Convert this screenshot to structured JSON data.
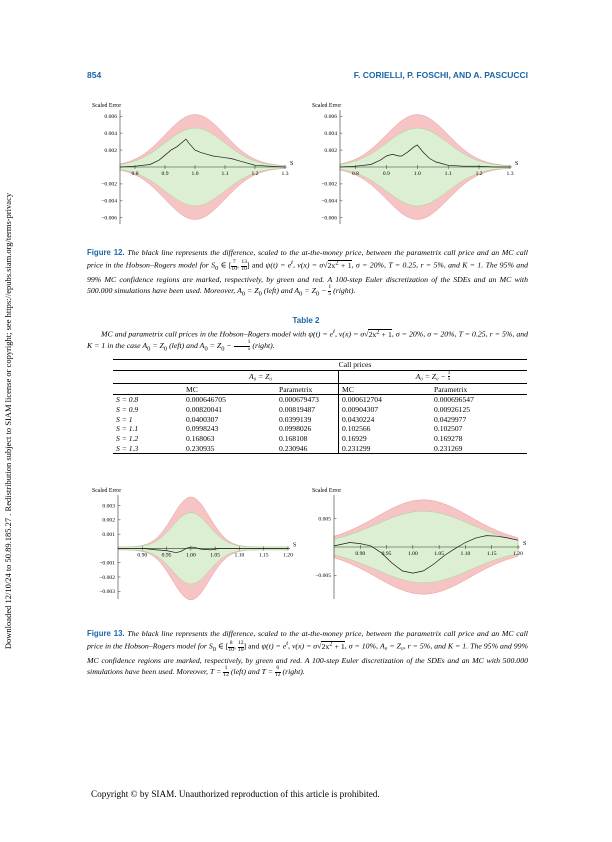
{
  "header": {
    "page_number": "854",
    "authors": "F. CORIELLI, P. FOSCHI, AND A. PASCUCCI"
  },
  "sidebar_note": "Downloaded 12/10/24 to 50.89.185.27 . Redistribution subject to SIAM license or copyright; see https://epubs.siam.org/terms-privacy",
  "figure12": {
    "label": "Figure 12.",
    "caption_a": "The black line represents the difference, scaled to the at-the-money price, between the parametrix call price and an MC call price in the Hobson–Rogers model for S",
    "caption_b": ", and ψ(t) = e",
    "caption_c": ", ν(x) = σ",
    "caption_d": "σ = 20%, T = 0.25, r = 5%, and K = 1. The 95% and 99% MC confidence regions are marked, respectively, by green and red. A 100-step Euler discretization of the SDEs and an MC with 500.000 simulations have been used. Moreover, A",
    "caption_e": "(left) and A",
    "caption_f": "(right).",
    "s_interval": [
      "7",
      "10",
      "13",
      "10"
    ],
    "shift_frac": [
      "1",
      "5"
    ]
  },
  "table2": {
    "label": "Table 2",
    "caption": "MC and parametrix call prices in the Hobson–Rogers model with ψ(t) = e",
    "caption_tail": "σ = 20%, T = 0.25, r = 5%, and K = 1 in the case A",
    "caption_end": "(left) and A",
    "caption_final": "(right).",
    "frac": [
      "1",
      "5"
    ],
    "super_header": "Call prices",
    "group_left": "A₀ = Z₀",
    "group_right": "A₀ = Z₀ −",
    "col_mc": "MC",
    "col_par": "Parametrix",
    "rows": [
      [
        "S = 0.8",
        "0.000646705",
        "0.000679473",
        "0.000612704",
        "0.000696547"
      ],
      [
        "S = 0.9",
        "0.00820041",
        "0.00819487",
        "0.00904307",
        "0.00926125"
      ],
      [
        "S = 1",
        "0.0400307",
        "0.0399139",
        "0.0430224",
        "0.0429977"
      ],
      [
        "S = 1.1",
        "0.0998243",
        "0.0998026",
        "0.102566",
        "0.102507"
      ],
      [
        "S = 1.2",
        "0.168063",
        "0.168108",
        "0.16929",
        "0.169278"
      ],
      [
        "S = 1.3",
        "0.230935",
        "0.230946",
        "0.231299",
        "0.231269"
      ]
    ]
  },
  "figure13": {
    "label": "Figure 13.",
    "caption_a": "The black line represents the difference, scaled to the at-the-money price, between the parametrix call price and an MC call price in the Hobson–Rogers model for S",
    "s_interval": [
      "8",
      "10",
      "12",
      "10"
    ],
    "caption_d": "σ = 10%, A₀ = Z₀, r = 5%, and K = 1. The 95% and 99% MC confidence regions are marked, respectively, by green and red. A 100-step Euler discretization of the SDEs and an MC with 500.000 simulations have been used. Moreover, T =",
    "t_left": [
      "1",
      "12"
    ],
    "t_right": [
      "6",
      "12"
    ],
    "caption_e": "(left) and T =",
    "caption_f": "(right)."
  },
  "footer": "Copyright © by SIAM. Unauthorized reproduction of this article is prohibited.",
  "colors": {
    "heading_blue": "#1a66a8",
    "band_99": "#f6c4c4",
    "band_95": "#dcefd2",
    "curve": "#1a1a1a"
  },
  "chart_data": [
    {
      "type": "area",
      "ylabel": "Scaled Error",
      "xlabel": "S",
      "xlim": [
        0.75,
        1.3
      ],
      "ylim": [
        -0.0065,
        0.0065
      ],
      "xticks": [
        "0.8",
        "0.9",
        "1.0",
        "1.1",
        "1.2",
        "1.3"
      ],
      "yticks": [
        "0.006",
        "0.004",
        "0.002",
        "−0.002",
        "−0.004",
        "−0.006"
      ],
      "ytick_values": [
        0.006,
        0.004,
        0.002,
        -0.002,
        -0.004,
        -0.006
      ],
      "band99": {
        "center": 1.0,
        "width": 0.1,
        "peak": 0.0062,
        "floor": 0.0001
      },
      "band95": {
        "center": 1.0,
        "width": 0.1,
        "peak": 0.0046,
        "floor": 0.0001
      },
      "series": [
        {
          "x": [
            0.75,
            0.8,
            0.85,
            0.88,
            0.9,
            0.92,
            0.94,
            0.96,
            0.97,
            0.98,
            1.0,
            1.02,
            1.04,
            1.06,
            1.08,
            1.1,
            1.12,
            1.15,
            1.2,
            1.25,
            1.3
          ],
          "values": [
            0,
            0.0001,
            0.0003,
            0.0008,
            0.0014,
            0.002,
            0.0024,
            0.003,
            0.0033,
            0.0028,
            0.002,
            0.0017,
            0.0015,
            0.0013,
            0.0012,
            0.0011,
            0.001,
            0.0007,
            0.0002,
            0.0001,
            0
          ]
        }
      ]
    },
    {
      "type": "area",
      "ylabel": "Scaled Error",
      "xlabel": "S",
      "xlim": [
        0.75,
        1.3
      ],
      "ylim": [
        -0.0065,
        0.0065
      ],
      "xticks": [
        "0.8",
        "0.9",
        "1.0",
        "1.1",
        "1.2",
        "1.3"
      ],
      "yticks": [
        "0.006",
        "0.004",
        "0.002",
        "−0.002",
        "−0.004",
        "−0.006"
      ],
      "ytick_values": [
        0.006,
        0.004,
        0.002,
        -0.002,
        -0.004,
        -0.006
      ],
      "band99": {
        "center": 1.0,
        "width": 0.1,
        "peak": 0.0062,
        "floor": 0.0001
      },
      "band95": {
        "center": 1.0,
        "width": 0.1,
        "peak": 0.0046,
        "floor": 0.0001
      },
      "series": [
        {
          "x": [
            0.75,
            0.8,
            0.85,
            0.88,
            0.9,
            0.92,
            0.94,
            0.95,
            0.97,
            0.99,
            1.0,
            1.02,
            1.04,
            1.06,
            1.08,
            1.1,
            1.15,
            1.2,
            1.25,
            1.3
          ],
          "values": [
            0,
            0.0001,
            0.0003,
            0.0008,
            0.0013,
            0.0015,
            0.0013,
            0.0013,
            0.0018,
            0.0024,
            0.0026,
            0.0017,
            0.001,
            0.0006,
            0.0004,
            0.0002,
            0.0001,
            0.0001,
            0,
            0
          ]
        }
      ]
    },
    {
      "type": "area",
      "ylabel": "Scaled Error",
      "xlabel": "S",
      "xlim": [
        0.85,
        1.2
      ],
      "ylim": [
        -0.0034,
        0.0036
      ],
      "xticks": [
        "0.90",
        "0.95",
        "1.00",
        "1.05",
        "1.10",
        "1.15",
        "1.20"
      ],
      "yticks": [
        "0.003",
        "0.002",
        "0.001",
        "−0.001",
        "−0.002",
        "−0.003"
      ],
      "ytick_values": [
        0.003,
        0.002,
        0.001,
        -0.001,
        -0.002,
        -0.003
      ],
      "band99": {
        "center": 1.0,
        "width": 0.038,
        "peak": 0.0036,
        "floor": 0.0001
      },
      "band95": {
        "center": 1.0,
        "width": 0.038,
        "peak": 0.0025,
        "floor": 0.0001
      },
      "series": [
        {
          "x": [
            0.85,
            0.9,
            0.93,
            0.95,
            0.97,
            0.98,
            0.99,
            1.0,
            1.01,
            1.02,
            1.04,
            1.06,
            1.1,
            1.15,
            1.2
          ],
          "values": [
            0,
            0,
            -0.0001,
            -0.00015,
            -0.0003,
            -0.0002,
            0,
            0.0001,
            5e-05,
            -5e-05,
            -0.0001,
            0,
            0,
            0,
            0
          ]
        }
      ]
    },
    {
      "type": "area",
      "ylabel": "Scaled Error",
      "xlabel": "S",
      "xlim": [
        0.85,
        1.2
      ],
      "ylim": [
        -0.0088,
        0.0088
      ],
      "xticks": [
        "0.90",
        "0.95",
        "1.00",
        "1.05",
        "1.10",
        "1.15",
        "1.20"
      ],
      "yticks": [
        "0.005",
        "−0.005"
      ],
      "ytick_values": [
        0.005,
        -0.005
      ],
      "band99": {
        "center": 1.02,
        "width": 0.09,
        "peak": 0.0083,
        "floor": 0.0006
      },
      "band95": {
        "center": 1.02,
        "width": 0.09,
        "peak": 0.0063,
        "floor": 0.0004
      },
      "series": [
        {
          "x": [
            0.85,
            0.88,
            0.9,
            0.92,
            0.94,
            0.96,
            0.98,
            1.0,
            1.02,
            1.04,
            1.06,
            1.08,
            1.1,
            1.12,
            1.14,
            1.16,
            1.18,
            1.2
          ],
          "values": [
            0.0002,
            0.0008,
            0.0006,
            0.0002,
            -0.001,
            -0.0028,
            -0.0042,
            -0.0046,
            -0.0042,
            -0.003,
            -0.0015,
            -0.0003,
            0.0008,
            0.0016,
            0.002,
            0.0019,
            0.0016,
            0.0012
          ]
        }
      ]
    }
  ]
}
